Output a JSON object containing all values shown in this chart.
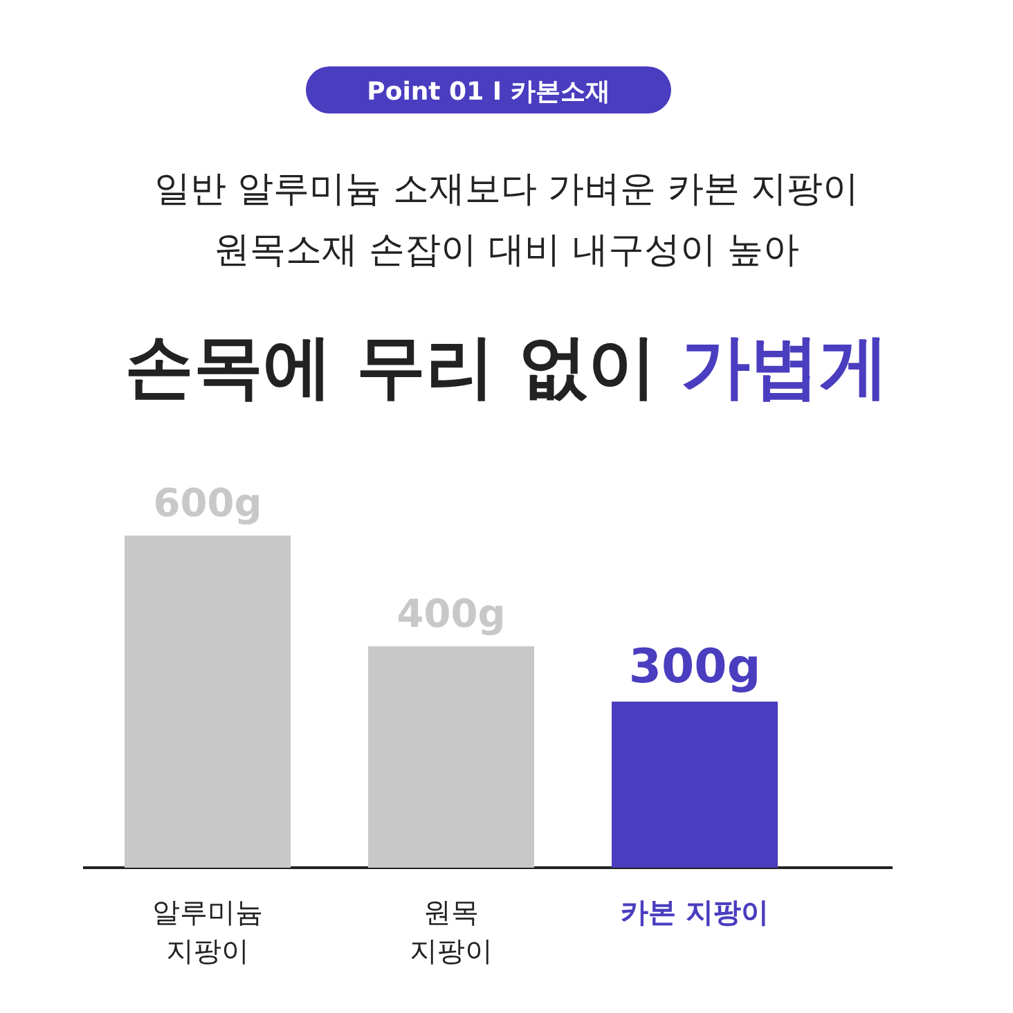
{
  "chart_data": {
    "type": "bar",
    "annotations": [
      "Point 01 I 카본소재"
    ],
    "subtitle": "일반 알루미늄 소재보다 가벼운 카본 지팡이\n원목소재 손잡이 대비 내구성이 높아",
    "title": "손목에 무리 없이 가볍게",
    "categories": [
      "알루미늄\n지팡이",
      "원목\n지팡이",
      "카본 지팡이"
    ],
    "values": [
      600,
      400,
      300
    ],
    "colors": [
      "#c8c8c8",
      "#c8c8c8",
      "#4a3dbf"
    ],
    "value_labels": [
      "600g",
      "400g",
      "300g"
    ]
  }
}
